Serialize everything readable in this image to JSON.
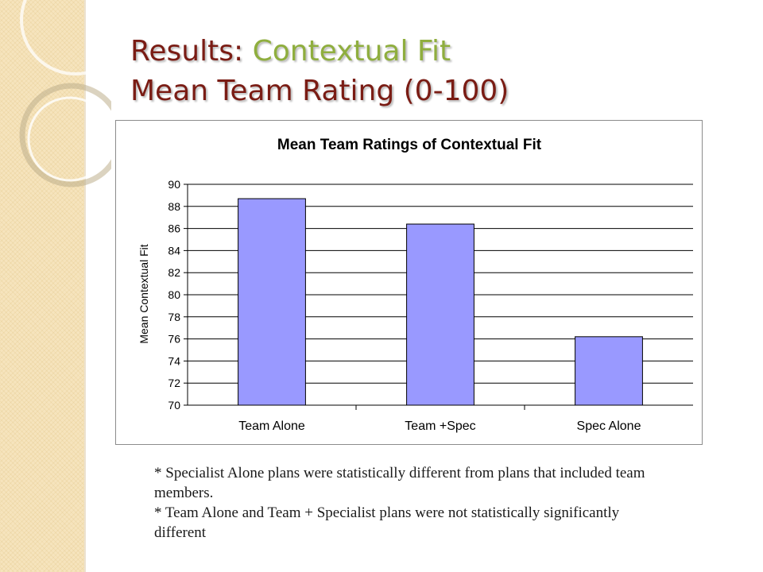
{
  "slide": {
    "title_prefix": "Results: ",
    "title_highlight": "Contextual Fit",
    "title_line2": "Mean Team Rating (0-100)",
    "colors": {
      "title": "#7a1c14",
      "highlight": "#8fae3e",
      "sidebar": "#f6e4bd"
    }
  },
  "chart_data": {
    "type": "bar",
    "title": "Mean Team Ratings of Contextual Fit",
    "ylabel": "Mean Contextual Fit",
    "xlabel": "",
    "categories": [
      "Team Alone",
      "Team +Spec",
      "Spec Alone"
    ],
    "values": [
      88.7,
      86.4,
      76.2
    ],
    "ylim": [
      70,
      90
    ],
    "yticks": [
      "70",
      "72",
      "74",
      "76",
      "78",
      "80",
      "82",
      "84",
      "86",
      "88",
      "90"
    ],
    "grid": true,
    "bar_color": "#9999ff",
    "legend": "none"
  },
  "notes": [
    "* Specialist Alone plans were statistically different from plans that included team members.",
    "* Team Alone and Team + Specialist plans were not statistically significantly different"
  ]
}
